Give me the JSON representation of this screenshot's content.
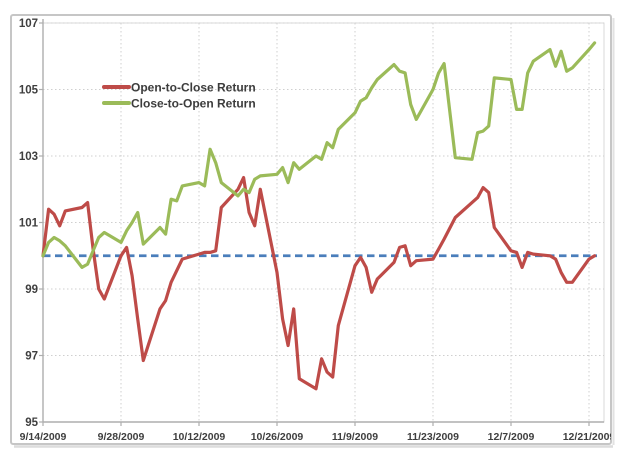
{
  "chart_data": {
    "type": "line",
    "title": "",
    "legend_position": "inside-top-left",
    "grid": true,
    "colors": {
      "open_to_close": "#BE4B48",
      "close_to_open": "#9BBB59",
      "baseline": "#4A7EBB",
      "gridline": "#CFCFCF",
      "axis_line": "#AEAEAE",
      "tick_text": "#3F3F3F",
      "frame_border": "#C6C6C6"
    },
    "legend": [
      {
        "label": "Open-to-Close Return",
        "color": "#BE4B48"
      },
      {
        "label": "Close-to-Open Return",
        "color": "#9BBB59"
      }
    ],
    "baseline": {
      "value": 100,
      "style": "dashed"
    },
    "y_axis": {
      "min": 95,
      "max": 107,
      "tick_interval": 2,
      "ticks": [
        107,
        105,
        103,
        101,
        99,
        97,
        95
      ]
    },
    "x_axis": {
      "tick_labels": [
        "9/14/2009",
        "9/28/2009",
        "10/12/2009",
        "10/26/2009",
        "11/9/2009",
        "11/23/2009",
        "12/7/2009",
        "12/21/2009"
      ]
    },
    "dates": [
      "9/14/2009",
      "9/15/2009",
      "9/16/2009",
      "9/17/2009",
      "9/18/2009",
      "9/21/2009",
      "9/22/2009",
      "9/23/2009",
      "9/24/2009",
      "9/25/2009",
      "9/28/2009",
      "9/29/2009",
      "9/30/2009",
      "10/1/2009",
      "10/2/2009",
      "10/5/2009",
      "10/6/2009",
      "10/7/2009",
      "10/8/2009",
      "10/9/2009",
      "10/12/2009",
      "10/13/2009",
      "10/14/2009",
      "10/15/2009",
      "10/16/2009",
      "10/19/2009",
      "10/20/2009",
      "10/21/2009",
      "10/22/2009",
      "10/23/2009",
      "10/26/2009",
      "10/27/2009",
      "10/28/2009",
      "10/29/2009",
      "10/30/2009",
      "11/2/2009",
      "11/3/2009",
      "11/4/2009",
      "11/5/2009",
      "11/6/2009",
      "11/9/2009",
      "11/10/2009",
      "11/11/2009",
      "11/12/2009",
      "11/13/2009",
      "11/16/2009",
      "11/17/2009",
      "11/18/2009",
      "11/19/2009",
      "11/20/2009",
      "11/23/2009",
      "11/24/2009",
      "11/25/2009",
      "11/27/2009",
      "11/30/2009",
      "12/1/2009",
      "12/2/2009",
      "12/3/2009",
      "12/4/2009",
      "12/7/2009",
      "12/8/2009",
      "12/9/2009",
      "12/10/2009",
      "12/11/2009",
      "12/14/2009",
      "12/15/2009",
      "12/16/2009",
      "12/17/2009",
      "12/18/2009",
      "12/21/2009",
      "12/22/2009"
    ],
    "series": [
      {
        "name": "Open-to-Close Return",
        "values": [
          100.0,
          101.4,
          101.25,
          100.9,
          101.35,
          101.45,
          101.6,
          100.2,
          99.0,
          98.7,
          100.0,
          100.25,
          99.4,
          98.1,
          96.85,
          98.4,
          98.65,
          99.2,
          99.55,
          99.9,
          100.05,
          100.1,
          100.1,
          100.15,
          101.45,
          102.0,
          102.35,
          101.3,
          100.9,
          102.0,
          99.5,
          98.1,
          97.3,
          98.4,
          96.3,
          96.0,
          96.9,
          96.5,
          96.35,
          97.9,
          99.7,
          99.95,
          99.65,
          98.9,
          99.3,
          99.8,
          100.25,
          100.3,
          99.7,
          99.85,
          99.9,
          100.2,
          100.5,
          101.15,
          101.6,
          101.75,
          102.05,
          101.9,
          100.85,
          100.15,
          100.1,
          99.65,
          100.1,
          100.05,
          100.0,
          99.9,
          99.5,
          99.2,
          99.2,
          99.9,
          100.0
        ]
      },
      {
        "name": "Close-to-Open Return",
        "values": [
          100.0,
          100.4,
          100.55,
          100.45,
          100.3,
          99.65,
          99.75,
          100.15,
          100.55,
          100.7,
          100.4,
          100.75,
          101.0,
          101.3,
          100.35,
          100.85,
          100.65,
          101.7,
          101.65,
          102.1,
          102.2,
          102.1,
          103.2,
          102.8,
          102.2,
          101.8,
          102.0,
          101.9,
          102.3,
          102.4,
          102.45,
          102.65,
          102.2,
          102.8,
          102.6,
          103.0,
          102.9,
          103.4,
          103.25,
          103.8,
          104.3,
          104.65,
          104.75,
          105.05,
          105.3,
          105.75,
          105.55,
          105.5,
          104.55,
          104.1,
          105.0,
          105.5,
          105.78,
          102.95,
          102.9,
          103.7,
          103.75,
          103.9,
          105.35,
          105.3,
          104.4,
          104.4,
          105.5,
          105.85,
          106.2,
          105.7,
          106.15,
          105.55,
          105.65,
          106.2,
          106.4
        ]
      }
    ]
  }
}
